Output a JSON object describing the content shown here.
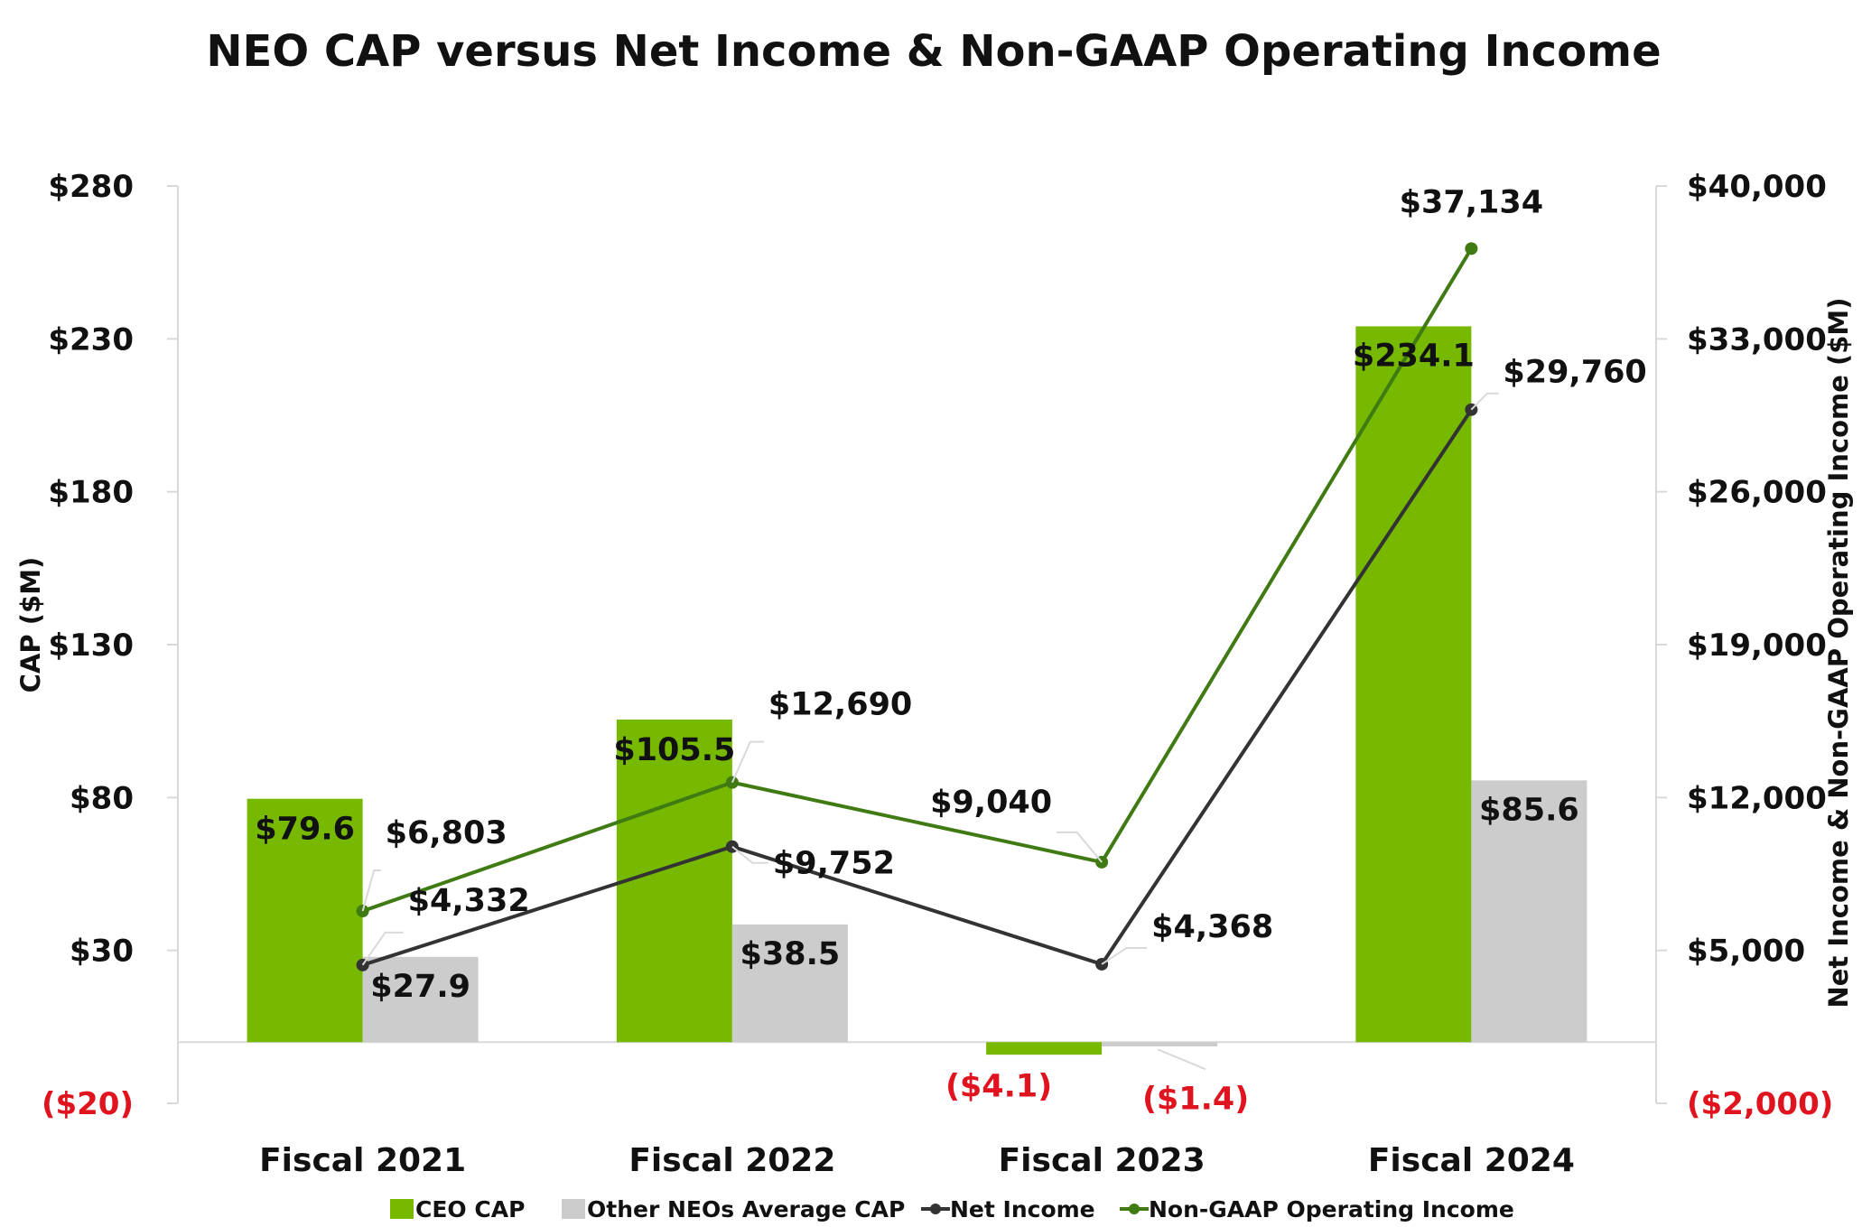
{
  "colors": {
    "ceo": "#76B900",
    "neo": "#CCCCCC",
    "net_income": "#333333",
    "non_gaap": "#3F7A12",
    "text": "#111111",
    "negative": "#E0141E",
    "axis": "#D9D9D9"
  },
  "chart_data": {
    "type": "bar",
    "title": "NEO CAP versus Net Income & Non-GAAP Operating Income",
    "ylabel": "CAP ($M)",
    "y2label": "Net Income & Non-GAAP Operating Income ($M)",
    "ylim": [
      -20,
      280
    ],
    "y2lim": [
      -2000,
      40000
    ],
    "yticks": [
      280,
      230,
      180,
      130,
      80,
      30,
      -20
    ],
    "yticklabels": [
      "$280",
      "$230",
      "$180",
      "$130",
      "$80",
      "$30",
      "($20)"
    ],
    "y2ticks": [
      40000,
      33000,
      26000,
      19000,
      12000,
      5000,
      -2000
    ],
    "y2ticklabels": [
      "$40,000",
      "$33,000",
      "$26,000",
      "$19,000",
      "$12,000",
      "$5,000",
      "($2,000)"
    ],
    "categories": [
      "Fiscal 2021",
      "Fiscal 2022",
      "Fiscal 2023",
      "Fiscal 2024"
    ],
    "bar_series": [
      {
        "name": "CEO CAP",
        "values": [
          79.6,
          105.5,
          -4.1,
          234.1
        ],
        "labels": [
          "$79.6",
          "$105.5",
          "($4.1)",
          "$234.1"
        ]
      },
      {
        "name": "Other NEOs Average CAP",
        "values": [
          27.9,
          38.5,
          -1.4,
          85.6
        ],
        "labels": [
          "$27.9",
          "$38.5",
          "($1.4)",
          "$85.6"
        ]
      }
    ],
    "line_series": [
      {
        "name": "Net Income",
        "axis": "right",
        "values": [
          4332,
          9752,
          4368,
          29760
        ],
        "labels": [
          "$4,332",
          "$9,752",
          "$4,368",
          "$29,760"
        ]
      },
      {
        "name": "Non-GAAP Operating Income",
        "axis": "right",
        "values": [
          6803,
          12690,
          9040,
          37134
        ],
        "labels": [
          "$6,803",
          "$12,690",
          "$9,040",
          "$37,134"
        ]
      }
    ],
    "legend": [
      "CEO CAP",
      "Other NEOs Average CAP",
      "Net Income",
      "Non-GAAP Operating Income"
    ],
    "legend_position": "bottom",
    "grid": false
  }
}
